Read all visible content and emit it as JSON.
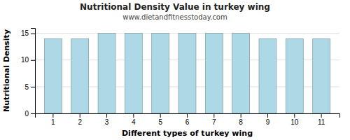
{
  "chart_data": {
    "type": "bar",
    "title": "Nutritional Density Value in turkey wing",
    "subtitle": "www.dietandfitnesstoday.com",
    "xlabel": "Different types of turkey wing",
    "ylabel": "Nutritional Density",
    "categories": [
      1,
      2,
      3,
      4,
      5,
      6,
      7,
      8,
      9,
      10,
      11
    ],
    "values": [
      14.0,
      14.0,
      15.0,
      15.0,
      15.0,
      15.0,
      15.0,
      15.0,
      14.0,
      14.0,
      14.0
    ],
    "color": "#add8e6",
    "ylim": [
      0,
      16
    ],
    "yticks": [
      0,
      5,
      10,
      15
    ],
    "grid": true
  }
}
